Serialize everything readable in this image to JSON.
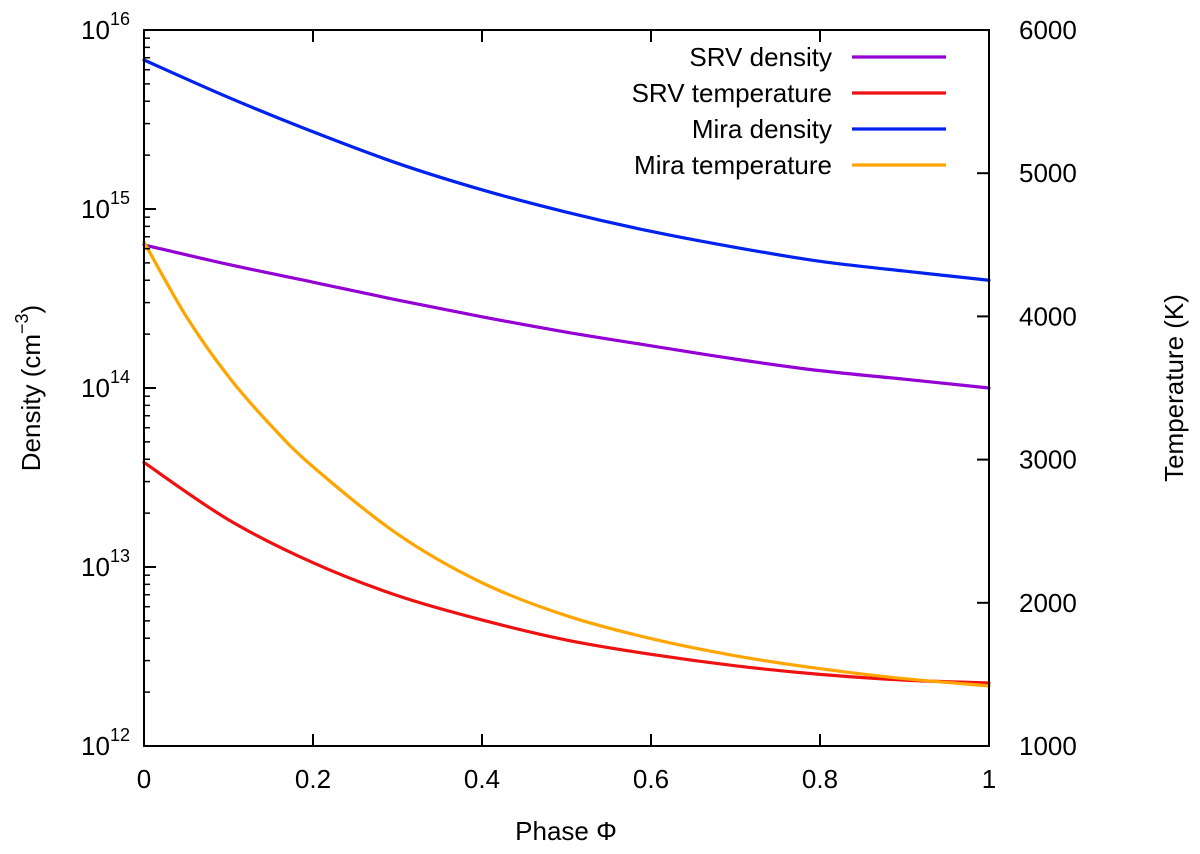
{
  "chart_data": {
    "type": "line",
    "xlabel": "Phase Φ",
    "ylabel": "Density (cm",
    "ylabel_exp": "−3",
    "ylabel_close": ")",
    "y2label": "Temperature (K)",
    "xlim": [
      0,
      1
    ],
    "ylim_log10": [
      12,
      16
    ],
    "y2lim": [
      1000,
      6000
    ],
    "x_ticks": [
      "0",
      "0.2",
      "0.4",
      "0.6",
      "0.8",
      "1"
    ],
    "x_tick_values": [
      0,
      0.2,
      0.4,
      0.6,
      0.8,
      1
    ],
    "y_ticks": [
      {
        "exp": 12,
        "base": "10",
        "sup": "12"
      },
      {
        "exp": 13,
        "base": "10",
        "sup": "13"
      },
      {
        "exp": 14,
        "base": "10",
        "sup": "14"
      },
      {
        "exp": 15,
        "base": "10",
        "sup": "15"
      },
      {
        "exp": 16,
        "base": "10",
        "sup": "16"
      }
    ],
    "y2_ticks": [
      "1000",
      "2000",
      "3000",
      "4000",
      "5000",
      "6000"
    ],
    "y2_tick_values": [
      1000,
      2000,
      3000,
      4000,
      5000,
      6000
    ],
    "legend_position": "top-right",
    "series": [
      {
        "name": "SRV density",
        "color": "#9400D3",
        "axis": "left-log",
        "x": [
          0,
          0.1,
          0.2,
          0.3,
          0.4,
          0.5,
          0.6,
          0.7,
          0.8,
          0.9,
          1.0
        ],
        "y": [
          630000000000000.0,
          490000000000000.0,
          390000000000000.0,
          310000000000000.0,
          250000000000000.0,
          205000000000000.0,
          172000000000000.0,
          145000000000000.0,
          125000000000000.0,
          112000000000000.0,
          100000000000000.0
        ]
      },
      {
        "name": "SRV temperature",
        "color": "#EE1111",
        "axis": "right",
        "x": [
          0,
          0.1,
          0.2,
          0.3,
          0.4,
          0.5,
          0.6,
          0.7,
          0.8,
          0.9,
          1.0
        ],
        "y": [
          2980,
          2580,
          2280,
          2050,
          1880,
          1740,
          1640,
          1560,
          1500,
          1460,
          1440
        ]
      },
      {
        "name": "Mira density",
        "color": "#0022EE",
        "axis": "left-log",
        "x": [
          0,
          0.1,
          0.2,
          0.3,
          0.4,
          0.5,
          0.6,
          0.7,
          0.8,
          0.9,
          1.0
        ],
        "y": [
          6800000000000000.0,
          4200000000000000.0,
          2700000000000000.0,
          1800000000000000.0,
          1280000000000000.0,
          960000000000000.0,
          750000000000000.0,
          610000000000000.0,
          510000000000000.0,
          450000000000000.0,
          400000000000000.0
        ]
      },
      {
        "name": "Mira temperature",
        "color": "#FFA500",
        "axis": "right",
        "x": [
          0,
          0.05,
          0.1,
          0.15,
          0.2,
          0.3,
          0.4,
          0.5,
          0.6,
          0.7,
          0.8,
          0.9,
          1.0
        ],
        "y": [
          4520,
          4000,
          3580,
          3240,
          2950,
          2480,
          2140,
          1910,
          1750,
          1630,
          1540,
          1470,
          1420
        ]
      }
    ]
  }
}
